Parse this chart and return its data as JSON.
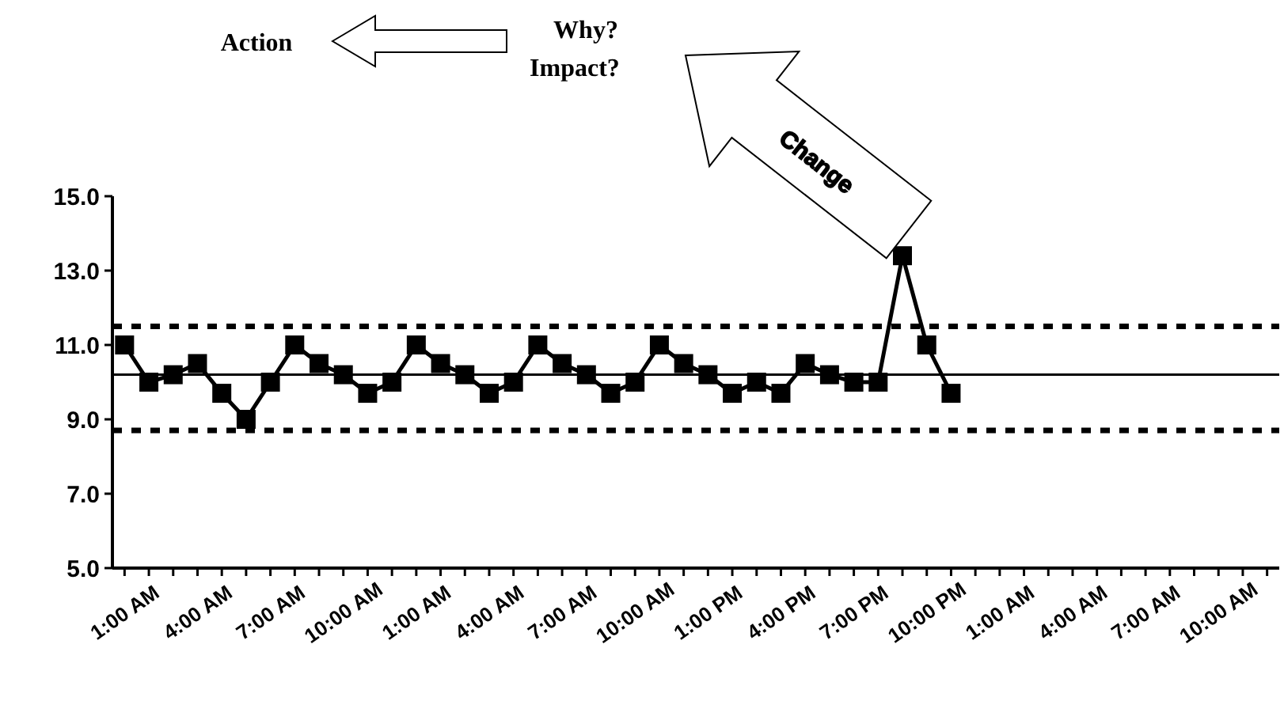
{
  "chart_data": {
    "type": "line",
    "categories": [
      "1:00 AM",
      null,
      null,
      "4:00 AM",
      null,
      null,
      "7:00 AM",
      null,
      null,
      "10:00 AM",
      null,
      null,
      "1:00 AM",
      null,
      null,
      "4:00 AM",
      null,
      null,
      "7:00 AM",
      null,
      null,
      "10:00 AM",
      null,
      null,
      "1:00 PM",
      null,
      null,
      "4:00 PM",
      null,
      null,
      "7:00 PM",
      null,
      null,
      "10:00 PM",
      null,
      null,
      "1:00 AM",
      null,
      null,
      "4:00 AM",
      null,
      null,
      "7:00 AM",
      null,
      null,
      "10:00 AM",
      null,
      null
    ],
    "series": [
      {
        "color": "#000000",
        "values": [
          11.0,
          10.0,
          10.2,
          10.5,
          9.7,
          9.0,
          10.0,
          11.0,
          10.5,
          10.2,
          9.7,
          10.0,
          11.0,
          10.5,
          10.2,
          9.7,
          10.0,
          11.0,
          10.5,
          10.2,
          9.7,
          10.0,
          11.0,
          10.5,
          10.2,
          9.7,
          10.0,
          9.7,
          10.5,
          10.2,
          10.0,
          10.0,
          13.4,
          11.0,
          9.7,
          null,
          null,
          null,
          null,
          null,
          null,
          null,
          null,
          null,
          null,
          null,
          null,
          null
        ]
      }
    ],
    "ylim": [
      5,
      15
    ],
    "yticks": [
      {
        "value": 5,
        "label": "5.0"
      },
      {
        "value": 7,
        "label": "7.0"
      },
      {
        "value": 9,
        "label": "9.0"
      },
      {
        "value": 11,
        "label": "11.0"
      },
      {
        "value": 13,
        "label": "13.0"
      },
      {
        "value": 15,
        "label": "15.0"
      }
    ],
    "ref_lines": [
      {
        "axis": "y",
        "value": 11.5,
        "line_style": "dashed",
        "color": "#000000"
      },
      {
        "axis": "y",
        "value": 10.2,
        "line_style": "solid",
        "color": "#000000"
      },
      {
        "axis": "y",
        "value": 8.7,
        "line_style": "dashed",
        "color": "#000000"
      }
    ],
    "annotations": [
      "Action",
      "Why?",
      "Impact?",
      "Change"
    ],
    "marker": "square",
    "line_style": "solid",
    "grid": false,
    "legend": false
  }
}
